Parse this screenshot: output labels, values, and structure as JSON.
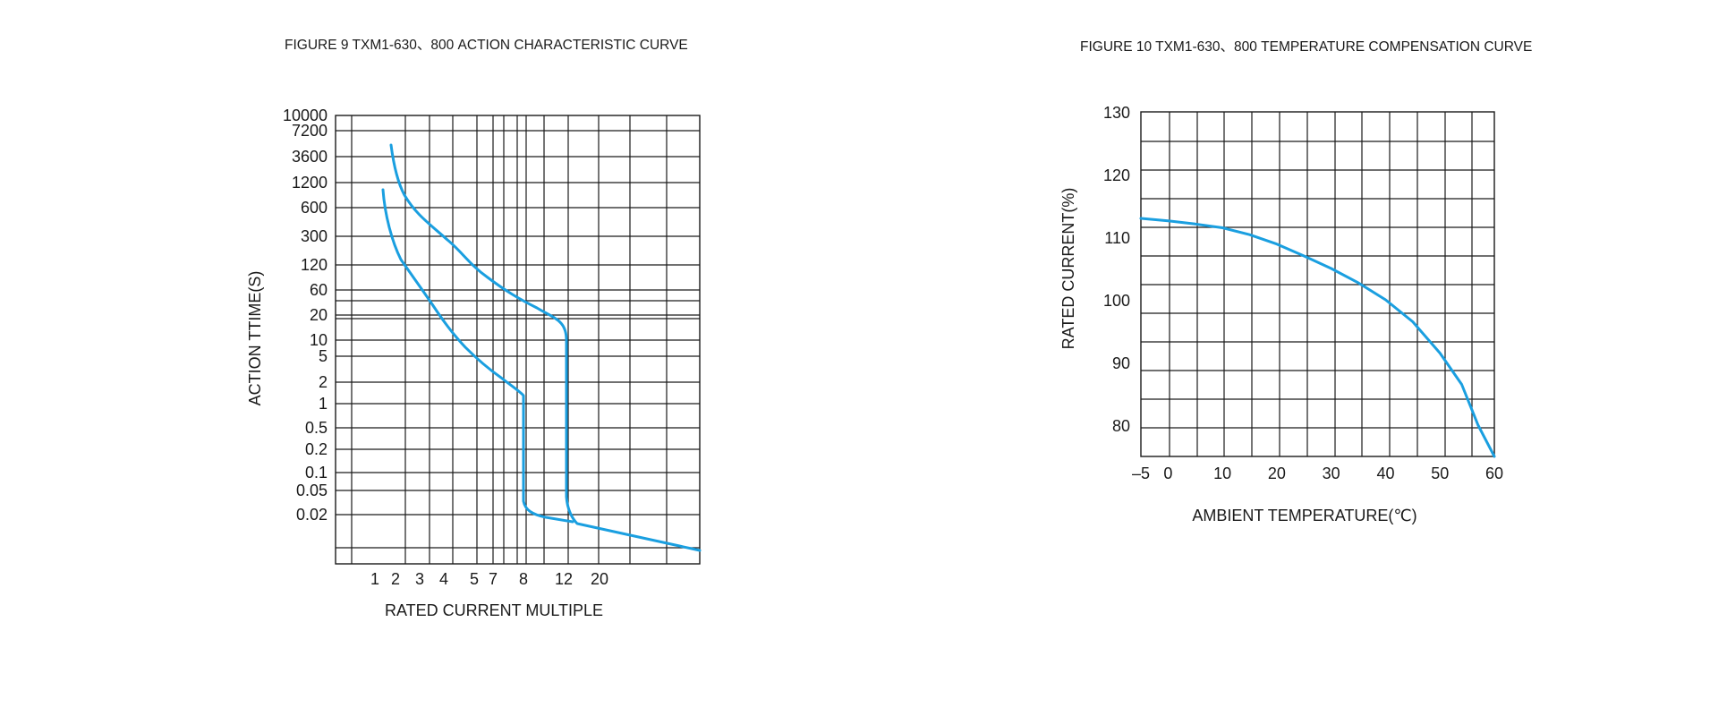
{
  "chart_data": [
    {
      "type": "line",
      "title": "FIGURE 9 TXM1-630、800 ACTION CHARACTERISTIC CURVE",
      "xlabel": "RATED CURRENT MULTIPLE",
      "ylabel": "ACTION TTIME(S)",
      "x_tick_labels": [
        "1",
        "2",
        "3",
        "4",
        "5",
        "7",
        "8",
        "12",
        "20"
      ],
      "y_tick_labels": [
        "10000",
        "7200",
        "3600",
        "1200",
        "600",
        "300",
        "120",
        "60",
        "20",
        "10",
        "5",
        "2",
        "1",
        "0.5",
        "0.2",
        "0.1",
        "0.05",
        "0.02"
      ],
      "grid": true,
      "line_color": "#1a9fe0",
      "series": [
        {
          "points": [
            [
              "2",
              "3600"
            ],
            [
              "2",
              "1200"
            ],
            [
              "3",
              "300"
            ],
            [
              "4",
              "120"
            ],
            [
              "5",
              "60"
            ],
            [
              "7",
              "60"
            ],
            [
              "8",
              "20"
            ],
            [
              "12",
              "10"
            ],
            [
              "12",
              "0.05"
            ],
            [
              "12",
              "0.02"
            ],
            [
              "20",
              "0.02"
            ]
          ]
        },
        {
          "points": [
            [
              "1",
              "1200"
            ],
            [
              "2",
              "120"
            ],
            [
              "3",
              "20"
            ],
            [
              "4",
              "10"
            ],
            [
              "5",
              "5"
            ],
            [
              "7",
              "2"
            ],
            [
              "8",
              "1"
            ],
            [
              "8",
              "0.05"
            ],
            [
              "8",
              "0.02"
            ],
            [
              "12",
              "0.02"
            ]
          ]
        }
      ]
    },
    {
      "type": "line",
      "title": "FIGURE 10 TXM1-630、800 TEMPERATURE COMPENSATION CURVE",
      "xlabel": "AMBIENT TEMPERATURE(℃)",
      "ylabel": "RATED CURRENT(%)",
      "xlim": [
        -5,
        60
      ],
      "ylim": [
        75,
        130
      ],
      "x_tick_labels": [
        "–5",
        "0",
        "10",
        "20",
        "30",
        "40",
        "50",
        "60"
      ],
      "y_tick_labels": [
        "130",
        "120",
        "110",
        "100",
        "90",
        "80"
      ],
      "grid": true,
      "line_color": "#1a9fe0",
      "series": [
        {
          "x": [
            -5,
            0,
            5,
            10,
            15,
            20,
            25,
            30,
            35,
            40,
            45,
            50,
            54,
            57,
            60
          ],
          "y": [
            113,
            112.6,
            112.1,
            111.5,
            110.4,
            108.9,
            107,
            105,
            102.7,
            100,
            96.5,
            91.5,
            86.5,
            80,
            75
          ]
        }
      ]
    }
  ]
}
